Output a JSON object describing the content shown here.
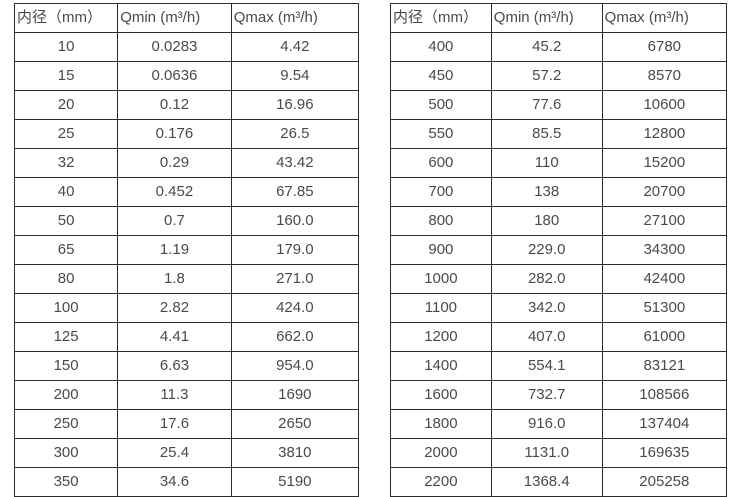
{
  "colors": {
    "background": "#ffffff",
    "border": "#2b2b2b",
    "text": "#4a4a4a"
  },
  "headers": {
    "diameter": "内径（mm）",
    "qmin": "Qmin (m³/h)",
    "qmax": "Qmax (m³/h)"
  },
  "left_table": {
    "rows": [
      [
        "10",
        "0.0283",
        "4.42"
      ],
      [
        "15",
        "0.0636",
        "9.54"
      ],
      [
        "20",
        "0.12",
        "16.96"
      ],
      [
        "25",
        "0.176",
        "26.5"
      ],
      [
        "32",
        "0.29",
        "43.42"
      ],
      [
        "40",
        "0.452",
        "67.85"
      ],
      [
        "50",
        "0.7",
        "160.0"
      ],
      [
        "65",
        "1.19",
        "179.0"
      ],
      [
        "80",
        "1.8",
        "271.0"
      ],
      [
        "100",
        "2.82",
        "424.0"
      ],
      [
        "125",
        "4.41",
        "662.0"
      ],
      [
        "150",
        "6.63",
        "954.0"
      ],
      [
        "200",
        "11.3",
        "1690"
      ],
      [
        "250",
        "17.6",
        "2650"
      ],
      [
        "300",
        "25.4",
        "3810"
      ],
      [
        "350",
        "34.6",
        "5190"
      ]
    ]
  },
  "right_table": {
    "rows": [
      [
        "400",
        "45.2",
        "6780"
      ],
      [
        "450",
        "57.2",
        "8570"
      ],
      [
        "500",
        "77.6",
        "10600"
      ],
      [
        "550",
        "85.5",
        "12800"
      ],
      [
        "600",
        "110",
        "15200"
      ],
      [
        "700",
        "138",
        "20700"
      ],
      [
        "800",
        "180",
        "27100"
      ],
      [
        "900",
        "229.0",
        "34300"
      ],
      [
        "1000",
        "282.0",
        "42400"
      ],
      [
        "1100",
        "342.0",
        "51300"
      ],
      [
        "1200",
        "407.0",
        "61000"
      ],
      [
        "1400",
        "554.1",
        "83121"
      ],
      [
        "1600",
        "732.7",
        "108566"
      ],
      [
        "1800",
        "916.0",
        "137404"
      ],
      [
        "2000",
        "1131.0",
        "169635"
      ],
      [
        "2200",
        "1368.4",
        "205258"
      ]
    ]
  }
}
